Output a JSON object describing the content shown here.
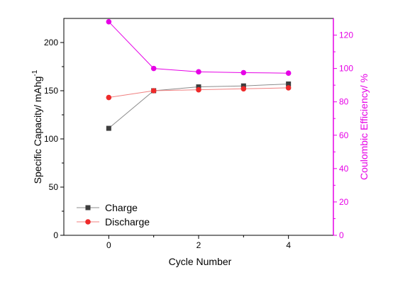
{
  "chart_data": {
    "type": "line",
    "xlabel": "Cycle Number",
    "xlim": [
      -1,
      5
    ],
    "xticks": [
      0,
      2,
      4
    ],
    "left_axis": {
      "label": "Specific Capacity/ mAhg",
      "label_superscript": "-1",
      "ylim": [
        0,
        225
      ],
      "ticks": [
        0,
        50,
        100,
        150,
        200
      ],
      "color": "#000000"
    },
    "right_axis": {
      "label": "Coulombic Efficiency/ %",
      "ylim": [
        0,
        130
      ],
      "ticks": [
        0,
        20,
        40,
        60,
        80,
        100,
        120
      ],
      "color": "#e600e6"
    },
    "series": [
      {
        "name": "Charge",
        "axis": "left",
        "marker": "square",
        "color": "#3d3d3d",
        "line_color": "#8c8c8c",
        "x": [
          0,
          1,
          2,
          3,
          4
        ],
        "y": [
          111,
          150,
          154,
          155,
          157
        ]
      },
      {
        "name": "Discharge",
        "axis": "left",
        "marker": "circle",
        "color": "#ee2a2a",
        "line_color": "#f08080",
        "x": [
          0,
          1,
          2,
          3,
          4
        ],
        "y": [
          143,
          150,
          151,
          152,
          153
        ]
      },
      {
        "axis": "right",
        "marker": "circle",
        "color": "#e600e6",
        "line_color": "#e600e6",
        "x": [
          0,
          1,
          2,
          3,
          4
        ],
        "y": [
          128,
          100,
          98,
          97.5,
          97.2
        ]
      }
    ],
    "legend": {
      "placement": "bottom-left",
      "entries": [
        "Charge",
        "Discharge"
      ]
    },
    "grid": false
  }
}
